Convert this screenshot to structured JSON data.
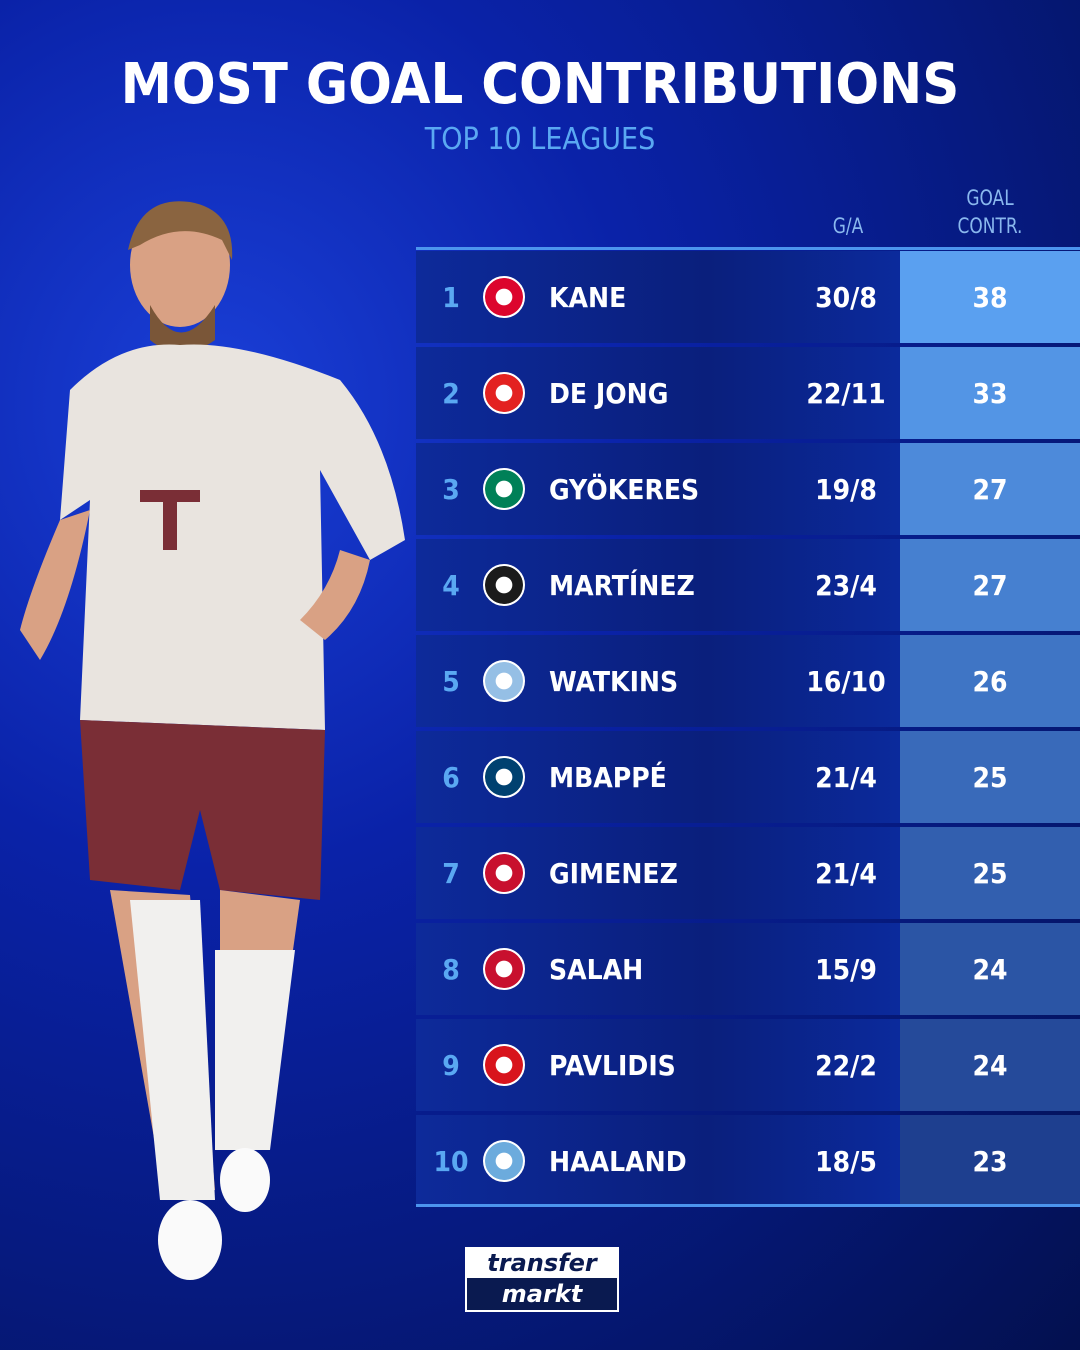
{
  "title": "MOST GOAL CONTRIBUTIONS",
  "subtitle": "TOP 10 LEAGUES",
  "headers": {
    "ga": "G/A",
    "contr_line1": "GOAL",
    "contr_line2": "CONTR."
  },
  "logo_text": {
    "top": "transfer",
    "bottom": "markt"
  },
  "colors": {
    "accent": "#5aa8f2",
    "background": "#0a22a8",
    "top_value_cell": "#5aa0f0",
    "bottom_value_cell": "#1e3f8f"
  },
  "chart_data": {
    "type": "table",
    "title": "MOST GOAL CONTRIBUTIONS",
    "subtitle": "TOP 10 LEAGUES",
    "columns": [
      "",
      "",
      "",
      "G/A",
      "GOAL CONTR."
    ],
    "rows": [
      {
        "rank": "1",
        "club_icon": "bayern-munich-crest",
        "club_color": "#dc052d",
        "player": "KANE",
        "ga": "30/8",
        "contr": "38"
      },
      {
        "rank": "2",
        "club_icon": "psv-crest",
        "club_color": "#e32221",
        "player": "DE JONG",
        "ga": "22/11",
        "contr": "33"
      },
      {
        "rank": "3",
        "club_icon": "sporting-cp-crest",
        "club_color": "#008057",
        "player": "GYÖKERES",
        "ga": "19/8",
        "contr": "27"
      },
      {
        "rank": "4",
        "club_icon": "inter-crest",
        "club_color": "#1b1b1b",
        "player": "MARTÍNEZ",
        "ga": "23/4",
        "contr": "27"
      },
      {
        "rank": "5",
        "club_icon": "aston-villa-crest",
        "club_color": "#95bfe5",
        "player": "WATKINS",
        "ga": "16/10",
        "contr": "26"
      },
      {
        "rank": "6",
        "club_icon": "psg-crest",
        "club_color": "#004170",
        "player": "MBAPPÉ",
        "ga": "21/4",
        "contr": "25"
      },
      {
        "rank": "7",
        "club_icon": "feyenoord-crest",
        "club_color": "#c8102e",
        "player": "GIMENEZ",
        "ga": "21/4",
        "contr": "25"
      },
      {
        "rank": "8",
        "club_icon": "liverpool-crest",
        "club_color": "#c8102e",
        "player": "SALAH",
        "ga": "15/9",
        "contr": "24"
      },
      {
        "rank": "9",
        "club_icon": "az-alkmaar-crest",
        "club_color": "#d8141c",
        "player": "PAVLIDIS",
        "ga": "22/2",
        "contr": "24"
      },
      {
        "rank": "10",
        "club_icon": "manchester-city-crest",
        "club_color": "#6cabdd",
        "player": "HAALAND",
        "ga": "18/5",
        "contr": "23"
      }
    ]
  }
}
